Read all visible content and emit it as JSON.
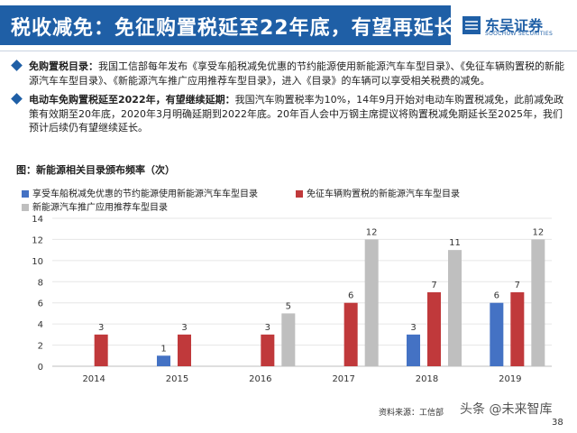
{
  "header": {
    "title": "税收减免：免征购置税延至22年底，有望再延长",
    "logo_cn": "东吴证券",
    "logo_en": "SOOCHOW SECURITIES"
  },
  "bullets": [
    {
      "head": "免购置税目录：",
      "text": "我国工信部每年发布《享受车船税减免优惠的节约能源使用新能源汽车车型目录》、《免征车辆购置税的新能源汽车车型目录》、《新能源汽车推广应用推荐车型目录》，进入《目录》的车辆可以享受相关税费的减免。"
    },
    {
      "head": "电动车免购置税延至2022年，有望继续延期：",
      "text": "我国汽车购置税率为10%，14年9月开始对电动车购置税减免，此前减免政策有效期至20年底，2020年3月明确延期到2022年底。20年百人会中万钢主席提议将购置税减免期延长至2025年，我们预计后续仍有望继续延长。"
    }
  ],
  "chart_data": {
    "type": "bar",
    "title": "图：新能源相关目录颁布频率（次）",
    "categories": [
      "2014",
      "2015",
      "2016",
      "2017",
      "2018",
      "2019"
    ],
    "series": [
      {
        "name": "享受车船税减免优惠的节约能源使用新能源汽车车型目录",
        "color": "#4472c4",
        "values": [
          null,
          1,
          null,
          null,
          3,
          6
        ]
      },
      {
        "name": "免征车辆购置税的新能源汽车车型目录",
        "color": "#c0393b",
        "values": [
          3,
          3,
          3,
          6,
          7,
          7
        ]
      },
      {
        "name": "新能源汽车推广应用推荐车型目录",
        "color": "#bfbfbf",
        "values": [
          null,
          null,
          5,
          12,
          11,
          12
        ]
      }
    ],
    "ylim": [
      0,
      14
    ],
    "yticks": [
      0,
      2,
      4,
      6,
      8,
      10,
      12,
      14
    ],
    "xlabel": "",
    "ylabel": ""
  },
  "footer": {
    "source": "资料来源：工信部",
    "watermark": "头条 @未来智库",
    "page": "38"
  }
}
